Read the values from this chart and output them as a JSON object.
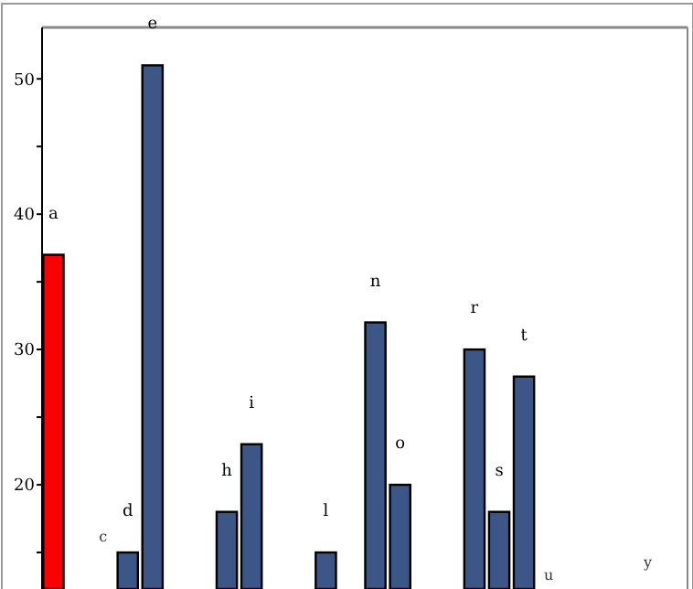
{
  "chart_data": {
    "type": "bar",
    "categories": [
      "a",
      null,
      "c",
      "d",
      "e",
      null,
      null,
      "h",
      "i",
      null,
      null,
      "l",
      null,
      "n",
      "o",
      null,
      null,
      "r",
      "s",
      "t",
      "u",
      null,
      null,
      null,
      "y"
    ],
    "values": [
      37,
      null,
      null,
      15,
      51,
      null,
      null,
      18,
      23,
      null,
      null,
      15,
      null,
      32,
      20,
      null,
      null,
      30,
      18,
      28,
      null,
      null,
      null,
      null,
      null
    ],
    "colors": [
      "#ff0000",
      null,
      null,
      "#3d5688",
      "#3d5688",
      null,
      null,
      "#3d5688",
      "#3d5688",
      null,
      null,
      "#3d5688",
      null,
      "#3d5688",
      "#3d5688",
      null,
      null,
      "#3d5688",
      "#3d5688",
      "#3d5688",
      null,
      null,
      null,
      null,
      null
    ],
    "ylim": [
      12.3,
      53.8
    ],
    "yticks": [
      {
        "value": 15,
        "label": null
      },
      20,
      {
        "value": 25,
        "label": null
      },
      30,
      {
        "value": 35,
        "label": null
      },
      40,
      {
        "value": 45,
        "label": null
      },
      50
    ],
    "grid": false
  }
}
